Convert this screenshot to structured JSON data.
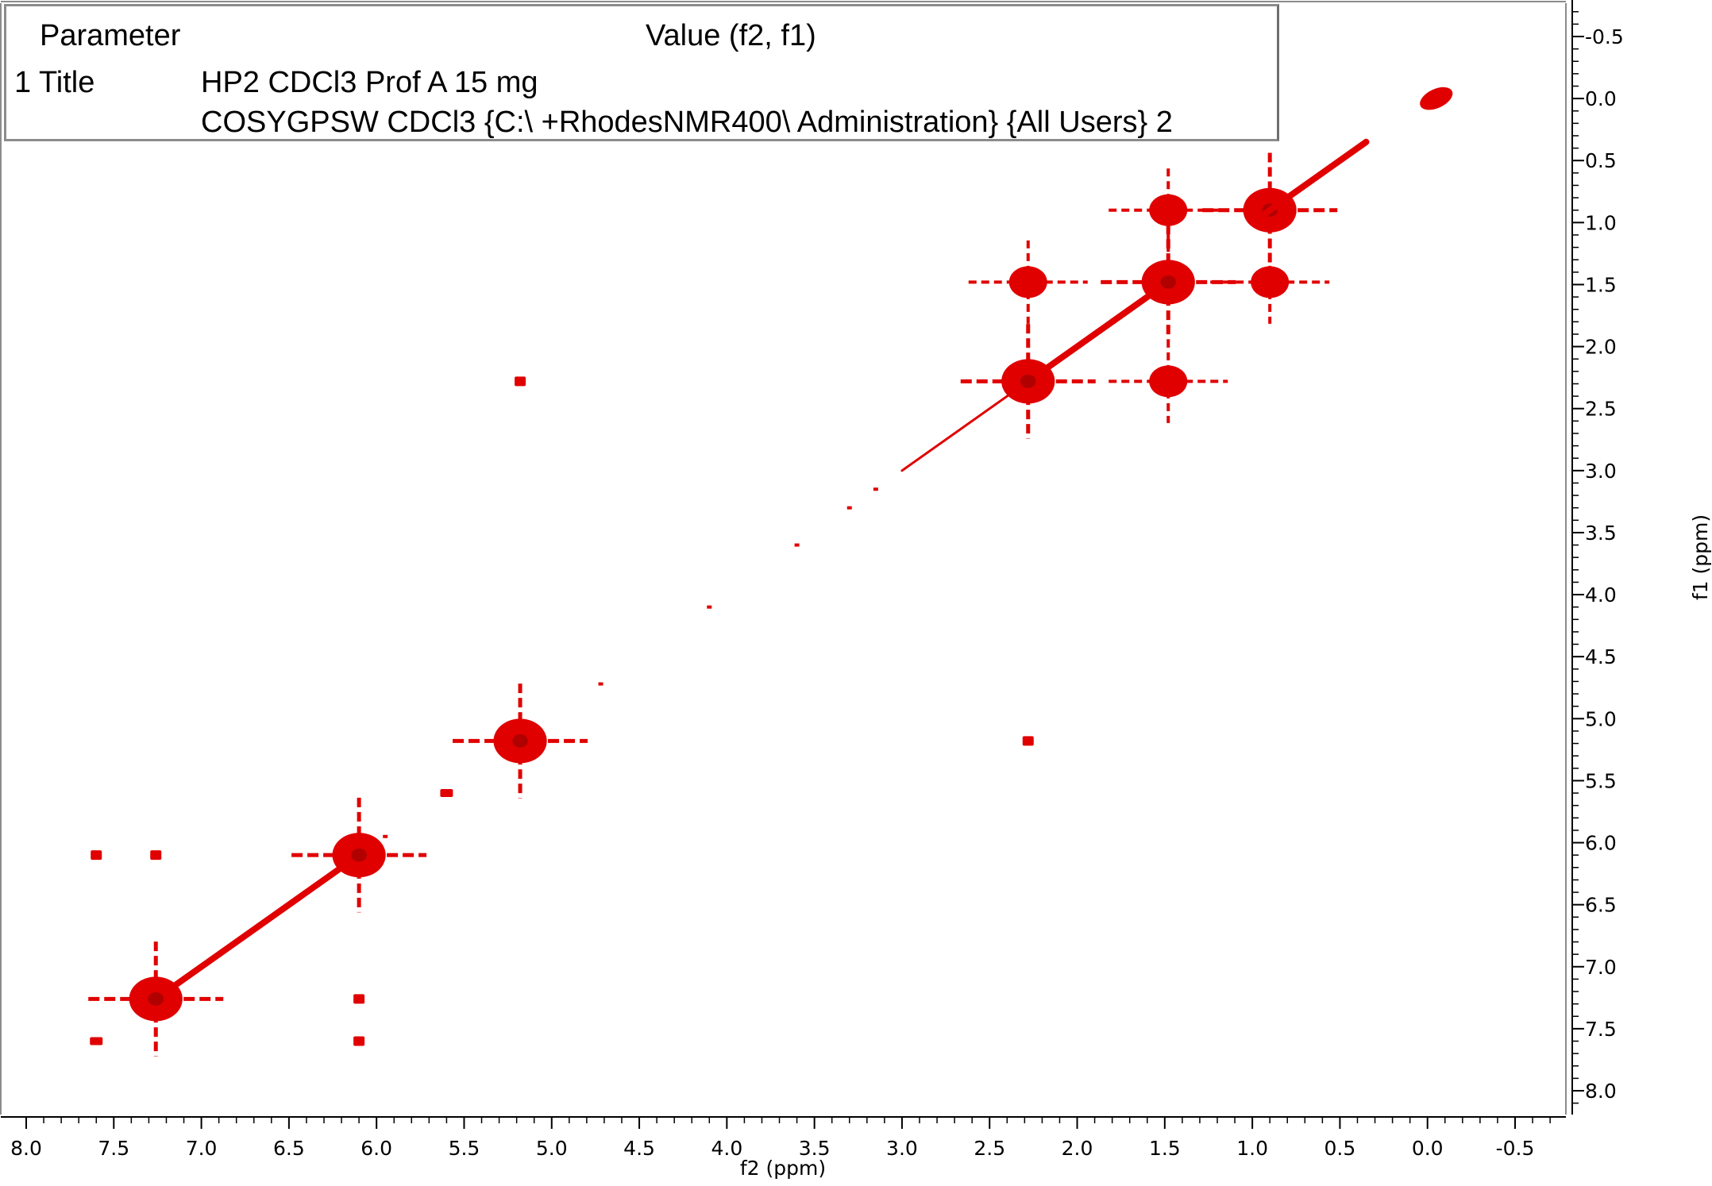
{
  "parameter_table": {
    "header_param": "Parameter",
    "header_value": "Value (f2, f1)",
    "row_label": "1 Title",
    "row_value_line1": "HP2 CDCl3 Prof A 15 mg",
    "row_value_line2": "COSYGPSW CDCl3 {C:\\ +RhodesNMR400\\ Administration} {All Users} 2"
  },
  "chart_data": {
    "type": "heatmap",
    "subtype": "2D COSY contour plot",
    "xlabel": "f2 (ppm)",
    "ylabel": "f1 (ppm)",
    "xlim": [
      8.15,
      -0.75
    ],
    "ylim": [
      -0.75,
      8.15
    ],
    "x_ticks": [
      "8.0",
      "7.5",
      "7.0",
      "6.5",
      "6.0",
      "5.5",
      "5.0",
      "4.5",
      "4.0",
      "3.5",
      "3.0",
      "2.5",
      "2.0",
      "1.5",
      "1.0",
      "0.5",
      "0.0",
      "-0.5"
    ],
    "y_ticks": [
      "-0.5",
      "0.0",
      "0.5",
      "1.0",
      "1.5",
      "2.0",
      "2.5",
      "3.0",
      "3.5",
      "4.0",
      "4.5",
      "5.0",
      "5.5",
      "6.0",
      "6.5",
      "7.0",
      "7.5",
      "8.0"
    ],
    "x_reversed": true,
    "y_reversed": true,
    "grid": false,
    "peak_color": "#e00000",
    "diagonal_peaks": [
      {
        "f2": 7.26,
        "f1": 7.26,
        "intensity": "strong"
      },
      {
        "f2": 7.6,
        "f1": 7.6,
        "intensity": "weak"
      },
      {
        "f2": 6.1,
        "f1": 6.1,
        "intensity": "strong"
      },
      {
        "f2": 5.6,
        "f1": 5.6,
        "intensity": "weak"
      },
      {
        "f2": 5.18,
        "f1": 5.18,
        "intensity": "strong"
      },
      {
        "f2": 2.28,
        "f1": 2.28,
        "intensity": "strong"
      },
      {
        "f2": 1.48,
        "f1": 1.48,
        "intensity": "strong"
      },
      {
        "f2": 0.9,
        "f1": 0.9,
        "intensity": "strong"
      },
      {
        "f2": -0.05,
        "f1": 0.0,
        "intensity": "medium"
      }
    ],
    "cross_peaks": [
      {
        "f2": 1.48,
        "f1": 0.9
      },
      {
        "f2": 0.9,
        "f1": 1.48
      },
      {
        "f2": 2.28,
        "f1": 1.48
      },
      {
        "f2": 1.48,
        "f1": 2.28
      },
      {
        "f2": 5.18,
        "f1": 2.28
      },
      {
        "f2": 2.28,
        "f1": 5.18
      },
      {
        "f2": 7.26,
        "f1": 6.1
      },
      {
        "f2": 6.1,
        "f1": 7.26
      },
      {
        "f2": 7.6,
        "f1": 6.1
      },
      {
        "f2": 6.1,
        "f1": 7.6
      }
    ]
  }
}
